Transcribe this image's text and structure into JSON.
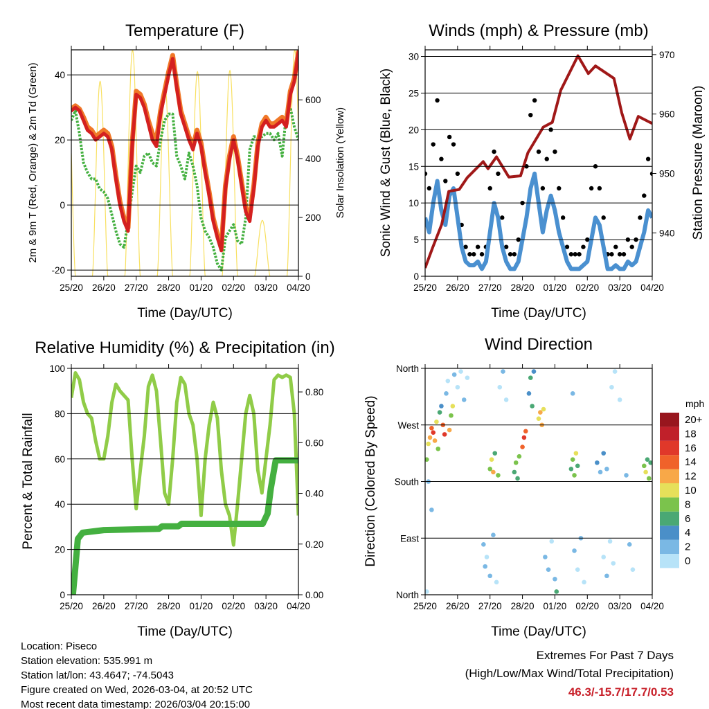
{
  "colors": {
    "temp2m": "#d42020",
    "temp9m": "#f07828",
    "dew": "#44b040",
    "solar": "#f8e060",
    "wind": "#4a90d0",
    "gust": "#000000",
    "pressure": "#a01818",
    "rh": "#90cc48",
    "precip": "#44b040",
    "extremes": "#c8202a"
  },
  "x_ticks": [
    "25/20",
    "26/20",
    "27/20",
    "28/20",
    "01/20",
    "02/20",
    "03/20",
    "04/20"
  ],
  "chart_data": [
    {
      "id": "temperature",
      "type": "line",
      "title": "Temperature (F)",
      "xlabel": "Time (Day/UTC)",
      "ylabel": "2m & 9m T (Red, Orange) & 2m Td (Green)",
      "ylabel_right": "Solar Insolation (Yellow)",
      "ylim": [
        -21.9,
        47.7
      ],
      "ylim_right": [
        0,
        770
      ],
      "yticks": [
        -20,
        0,
        20,
        40
      ],
      "yticks_right": [
        0,
        200,
        400,
        600
      ],
      "x_unit": "days, 3-hourly from 25/20",
      "grid": true,
      "series": [
        {
          "name": "2m T",
          "color_key": "temp2m",
          "values": [
            29,
            30,
            29,
            26,
            23,
            22,
            20,
            21,
            22,
            21,
            17,
            8,
            0,
            -5,
            -8,
            18,
            34,
            33,
            30,
            25,
            20,
            18,
            28,
            34,
            40,
            45,
            36,
            28,
            24,
            20,
            17,
            22,
            18,
            10,
            3,
            -5,
            -10,
            -14,
            5,
            14,
            20,
            14,
            6,
            -2,
            -5,
            5,
            18,
            24,
            26,
            24,
            24,
            25,
            26,
            24,
            34,
            38,
            47
          ]
        },
        {
          "name": "9m T",
          "color_key": "temp9m",
          "values": [
            29.5,
            30.5,
            29.5,
            27,
            24,
            23,
            21,
            22,
            23,
            22,
            18,
            9,
            1,
            -4,
            -7,
            19,
            35,
            34,
            31,
            26,
            22,
            20,
            29,
            35,
            41,
            46,
            37,
            29,
            25,
            21,
            18,
            23,
            19,
            11,
            4,
            -4,
            -9,
            -13,
            6,
            15,
            21,
            15,
            7,
            -1,
            -3,
            6,
            19,
            25,
            27,
            25,
            25,
            26,
            27,
            25,
            35,
            39,
            47
          ]
        },
        {
          "name": "2m Td",
          "color_key": "dew",
          "values": [
            26,
            29,
            22,
            13,
            10,
            8,
            8,
            5,
            4,
            2,
            -3,
            -8,
            -12,
            -13,
            -5,
            4,
            12,
            10,
            15,
            16,
            13,
            12,
            20,
            26,
            28,
            28,
            15,
            12,
            8,
            16,
            12,
            6,
            -4,
            -8,
            -10,
            -13,
            -18,
            -20,
            -10,
            -8,
            -6,
            -11,
            -12,
            -4,
            17,
            21,
            21,
            21,
            22,
            22,
            20,
            22,
            15,
            28,
            30,
            24,
            20
          ]
        }
      ],
      "solar_daily_peaks": [
        663,
        770,
        650,
        696,
        700,
        190,
        770
      ]
    },
    {
      "id": "winds",
      "type": "line",
      "title": "Winds (mph) & Pressure (mb)",
      "xlabel": "Time (Day/UTC)",
      "ylabel": "Sonic Wind & Gust (Blue, Black)",
      "ylabel_right": "Station Pressure (Maroon)",
      "ylim": [
        0,
        30.9
      ],
      "ylim_right": [
        932.7,
        970.8
      ],
      "yticks": [
        0,
        5,
        10,
        15,
        20,
        25,
        30
      ],
      "yticks_right": [
        940,
        950,
        960,
        970
      ],
      "grid": true,
      "wind": [
        8,
        6,
        10,
        13,
        9,
        7,
        11,
        12,
        8,
        4,
        2,
        1.5,
        1.5,
        2,
        1,
        2,
        6,
        10,
        8,
        4,
        2,
        1,
        1,
        2,
        5,
        8,
        12,
        14,
        10,
        6,
        9,
        11,
        9,
        6,
        4,
        2,
        1,
        1,
        1,
        1.5,
        2,
        5,
        8,
        7,
        4,
        1,
        1,
        1.5,
        1,
        1,
        2,
        1.5,
        2,
        4,
        6,
        9,
        8
      ],
      "gust": [
        14,
        12,
        18,
        24,
        16,
        13,
        19,
        18,
        14,
        7,
        4,
        3,
        3,
        4,
        3,
        4,
        12,
        17,
        14,
        8,
        4,
        3,
        3,
        5,
        10,
        15,
        22,
        24,
        17,
        12,
        16,
        20,
        17,
        12,
        8,
        4,
        3,
        3,
        3,
        4,
        5,
        12,
        15,
        12,
        8,
        3,
        3,
        4,
        3,
        3,
        5,
        4,
        5,
        8,
        11,
        16,
        14
      ],
      "pressure": {
        "t": [
          0,
          0.23,
          0.51,
          0.73,
          1.05,
          1.3,
          1.79,
          1.94,
          2.2,
          2.58,
          2.94,
          3.17,
          3.64,
          3.92,
          4.18,
          4.71,
          5.03,
          5.25,
          5.82,
          6.06,
          6.31,
          6.57,
          7.0
        ],
        "v": [
          934.1,
          937.5,
          941.4,
          947,
          947.3,
          949.3,
          952,
          950.8,
          952.8,
          949.4,
          949.6,
          953.5,
          957.8,
          958.6,
          964,
          969.8,
          966.8,
          968.1,
          966,
          960.2,
          955.8,
          959.6,
          958.4
        ]
      }
    },
    {
      "id": "humidity",
      "type": "line",
      "title": "Relative Humidity (%) & Precipitation (in)",
      "xlabel": "Time (Day/UTC)",
      "ylabel": "Percent & Total Rainfall",
      "ylim": [
        0,
        100
      ],
      "ylim_right": [
        0,
        0.893
      ],
      "yticks": [
        0,
        20,
        40,
        60,
        80,
        100
      ],
      "yticks_right": [
        0,
        0.2,
        0.4,
        0.6,
        0.8
      ],
      "grid": true,
      "rh": [
        87,
        98,
        95,
        85,
        80,
        78,
        68,
        60,
        60,
        70,
        85,
        93,
        90,
        88,
        86,
        60,
        38,
        55,
        70,
        92,
        97,
        90,
        68,
        45,
        40,
        60,
        85,
        96,
        93,
        80,
        75,
        60,
        35,
        60,
        75,
        85,
        78,
        55,
        40,
        35,
        22,
        40,
        60,
        80,
        88,
        80,
        55,
        45,
        60,
        75,
        95,
        97,
        96,
        97,
        96,
        80,
        35
      ],
      "precip": {
        "t": [
          0,
          0.05,
          0.12,
          0.2,
          0.35,
          1.0,
          2.7,
          2.8,
          3.3,
          3.4,
          5.9,
          6.05,
          6.15,
          6.3,
          7.0
        ],
        "v": [
          0,
          0,
          0.1,
          0.22,
          0.245,
          0.255,
          0.26,
          0.27,
          0.27,
          0.28,
          0.28,
          0.32,
          0.42,
          0.53,
          0.53
        ]
      }
    },
    {
      "id": "direction",
      "type": "scatter",
      "title": "Wind Direction",
      "xlabel": "Time (Day/UTC)",
      "ylabel": "Direction (Colored By Speed)",
      "ylim": [
        0,
        360
      ],
      "yticks": [
        0,
        90,
        180,
        270,
        360
      ],
      "ytick_labels": [
        "North",
        "East",
        "South",
        "West",
        "North"
      ],
      "grid": true,
      "legend": {
        "title": "mph",
        "labels": [
          "0",
          "2",
          "4",
          "6",
          "8",
          "10",
          "12",
          "14",
          "16",
          "18",
          "20+"
        ],
        "colors": [
          "#b7e3f8",
          "#7ab8e4",
          "#4a8fc8",
          "#4aa874",
          "#7bc34c",
          "#e6e05a",
          "#f8a848",
          "#f0622a",
          "#e0382a",
          "#c0202a",
          "#98161e"
        ],
        "placement": "right"
      },
      "points": [
        [
          0.05,
          215,
          9
        ],
        [
          0.1,
          240,
          11
        ],
        [
          0.15,
          250,
          13
        ],
        [
          0.2,
          265,
          15
        ],
        [
          0.25,
          258,
          17
        ],
        [
          0.3,
          245,
          12
        ],
        [
          0.35,
          275,
          10
        ],
        [
          0.4,
          232,
          8
        ],
        [
          0.45,
          290,
          7
        ],
        [
          0.5,
          300,
          5
        ],
        [
          0.55,
          270,
          14
        ],
        [
          0.6,
          255,
          16
        ],
        [
          0.65,
          320,
          3
        ],
        [
          0.7,
          340,
          1
        ],
        [
          0.75,
          262,
          12
        ],
        [
          0.8,
          285,
          9
        ],
        [
          0.85,
          300,
          11
        ],
        [
          0.9,
          350,
          2
        ],
        [
          1.0,
          330,
          1
        ],
        [
          1.1,
          355,
          0
        ],
        [
          1.2,
          310,
          2
        ],
        [
          1.3,
          345,
          1
        ],
        [
          0.1,
          180,
          3
        ],
        [
          0.2,
          135,
          2
        ],
        [
          0.05,
          5,
          1
        ],
        [
          1.8,
          80,
          2
        ],
        [
          1.85,
          45,
          3
        ],
        [
          1.9,
          60,
          1
        ],
        [
          2.0,
          30,
          2
        ],
        [
          2.1,
          95,
          3
        ],
        [
          2.2,
          20,
          1
        ],
        [
          2.0,
          200,
          8
        ],
        [
          2.05,
          215,
          10
        ],
        [
          2.1,
          195,
          12
        ],
        [
          2.15,
          225,
          7
        ],
        [
          2.25,
          190,
          9
        ],
        [
          2.3,
          330,
          1
        ],
        [
          2.4,
          355,
          2
        ],
        [
          2.5,
          310,
          1
        ],
        [
          2.75,
          195,
          7
        ],
        [
          2.8,
          210,
          9
        ],
        [
          2.85,
          185,
          6
        ],
        [
          2.9,
          220,
          8
        ],
        [
          3.0,
          235,
          14
        ],
        [
          3.05,
          250,
          16
        ],
        [
          3.1,
          260,
          15
        ],
        [
          3.2,
          320,
          4
        ],
        [
          3.25,
          345,
          6
        ],
        [
          3.3,
          300,
          7
        ],
        [
          3.35,
          355,
          5
        ],
        [
          3.5,
          280,
          11
        ],
        [
          3.55,
          290,
          13
        ],
        [
          3.6,
          270,
          12
        ],
        [
          3.65,
          295,
          10
        ],
        [
          3.7,
          60,
          2
        ],
        [
          3.8,
          40,
          3
        ],
        [
          3.9,
          85,
          1
        ],
        [
          4.0,
          25,
          2
        ],
        [
          4.05,
          5,
          7
        ],
        [
          4.5,
          200,
          7
        ],
        [
          4.55,
          215,
          9
        ],
        [
          4.6,
          190,
          8
        ],
        [
          4.65,
          225,
          10
        ],
        [
          4.7,
          205,
          6
        ],
        [
          4.6,
          70,
          2
        ],
        [
          4.7,
          40,
          1
        ],
        [
          4.8,
          90,
          3
        ],
        [
          4.9,
          20,
          1
        ],
        [
          4.55,
          320,
          2
        ],
        [
          5.3,
          210,
          4
        ],
        [
          5.4,
          195,
          3
        ],
        [
          5.5,
          225,
          5
        ],
        [
          5.6,
          200,
          2
        ],
        [
          5.5,
          60,
          1
        ],
        [
          5.6,
          30,
          2
        ],
        [
          5.7,
          85,
          1
        ],
        [
          5.8,
          50,
          0
        ],
        [
          5.75,
          330,
          1
        ],
        [
          5.85,
          355,
          0
        ],
        [
          6.0,
          310,
          1
        ],
        [
          6.2,
          190,
          2
        ],
        [
          6.3,
          80,
          3
        ],
        [
          6.4,
          40,
          1
        ],
        [
          6.75,
          205,
          8
        ],
        [
          6.8,
          195,
          10
        ],
        [
          6.85,
          215,
          7
        ],
        [
          6.9,
          185,
          9
        ],
        [
          6.95,
          210,
          6
        ]
      ]
    }
  ],
  "info": {
    "location": "Location: Piseco",
    "elevation": "Station elevation: 535.991 m",
    "latlon": "Station lat/lon: 43.4647; -74.5043",
    "created": "Figure created on Wed, 2026-03-04, at 20:52 UTC",
    "recent": "Most recent data timestamp: 2026/03/04 20:15:00"
  },
  "extremes": {
    "title": "Extremes For Past 7 Days",
    "subtitle": "(High/Low/Max Wind/Total Precipitation)",
    "values": "46.3/-15.7/17.7/0.53"
  }
}
